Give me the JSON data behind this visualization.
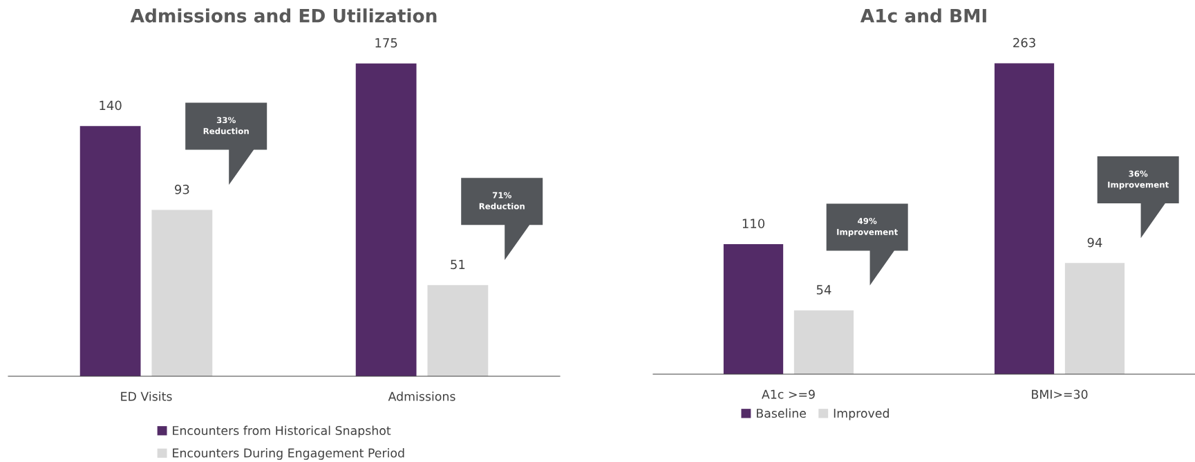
{
  "chart_data": [
    {
      "type": "bar",
      "title": "Admissions and ED Utilization",
      "categories": [
        "ED Visits",
        "Admissions"
      ],
      "series": [
        {
          "name": "Encounters from Historical Snapshot",
          "color": "#532b67",
          "values": [
            140,
            175
          ]
        },
        {
          "name": "Encounters During Engagement Period",
          "color": "#d9d9d9",
          "values": [
            93,
            51
          ]
        }
      ],
      "data_labels": true,
      "legend": "bottom",
      "grid": false,
      "annotations": [
        "33%\nReduction",
        "71%\nReduction"
      ]
    },
    {
      "type": "bar",
      "title": "A1c and BMI",
      "categories": [
        "A1c >=9",
        "BMI>=30"
      ],
      "series": [
        {
          "name": "Baseline",
          "color": "#532b67",
          "values": [
            110,
            263
          ]
        },
        {
          "name": "Improved",
          "color": "#d9d9d9",
          "values": [
            54,
            94
          ]
        }
      ],
      "data_labels": true,
      "legend": "bottom",
      "grid": false,
      "annotations": [
        "49%\nImprovement",
        "36%\nImprovement"
      ]
    }
  ]
}
